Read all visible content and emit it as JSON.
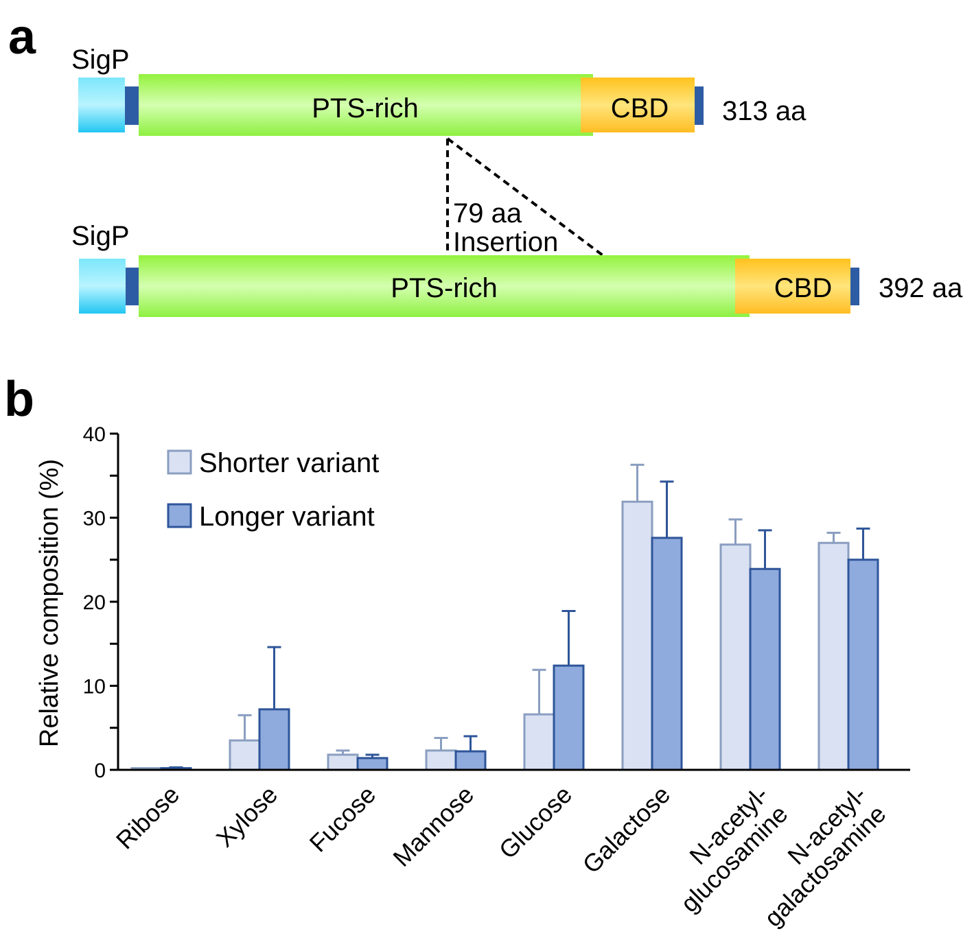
{
  "panel_a": {
    "label": "a",
    "top_protein": {
      "signal": "SigP",
      "domain": "PTS-rich",
      "binding": "CBD",
      "length": "313 aa"
    },
    "bottom_protein": {
      "signal": "SigP",
      "domain": "PTS-rich",
      "binding": "CBD",
      "length": "392 aa"
    },
    "insertion": {
      "line1": "79 aa",
      "line2": "Insertion"
    },
    "colors": {
      "sigp": "#33d0f5",
      "linker": "#2e5ca4",
      "pts": "#9efb4c",
      "cbd": "#ffc830"
    }
  },
  "panel_b": {
    "label": "b"
  },
  "chart_data": {
    "type": "bar",
    "title": "",
    "xlabel": "",
    "ylabel": "Relative composition (%)",
    "ylim": [
      0,
      40
    ],
    "yticks": [
      0,
      10,
      20,
      30,
      40
    ],
    "ytick_labels": [
      "0",
      "10",
      "20",
      "30",
      "40"
    ],
    "categories": [
      "Ribose",
      "Xylose",
      "Fucose",
      "Mannose",
      "Glucose",
      "Galactose",
      "N-acetyl-glucosamine",
      "N-acetyl-galactosamine"
    ],
    "category_lines": [
      [
        "Ribose"
      ],
      [
        "Xylose"
      ],
      [
        "Fucose"
      ],
      [
        "Mannose"
      ],
      [
        "Glucose"
      ],
      [
        "Galactose"
      ],
      [
        "N-acetyl-",
        "glucosamine"
      ],
      [
        "N-acetyl-",
        "galactosamine"
      ]
    ],
    "series": [
      {
        "name": "Shorter variant",
        "values": [
          0.2,
          3.5,
          1.8,
          2.3,
          6.6,
          31.9,
          26.8,
          27.0
        ],
        "errors": [
          0.0,
          3.0,
          0.5,
          1.5,
          5.3,
          4.4,
          3.0,
          1.2
        ],
        "fill": "#dae1f3",
        "stroke": "#8a9ec0"
      },
      {
        "name": "Longer variant",
        "values": [
          0.2,
          7.2,
          1.4,
          2.2,
          12.4,
          27.6,
          23.9,
          25.0
        ],
        "errors": [
          0.1,
          7.4,
          0.4,
          1.8,
          6.5,
          6.7,
          4.6,
          3.7
        ],
        "fill": "#8faadd",
        "stroke": "#2e5599"
      }
    ],
    "legend": {
      "placement": "top-left",
      "entries": [
        "Shorter variant",
        "Longer variant"
      ]
    },
    "grid": false
  }
}
